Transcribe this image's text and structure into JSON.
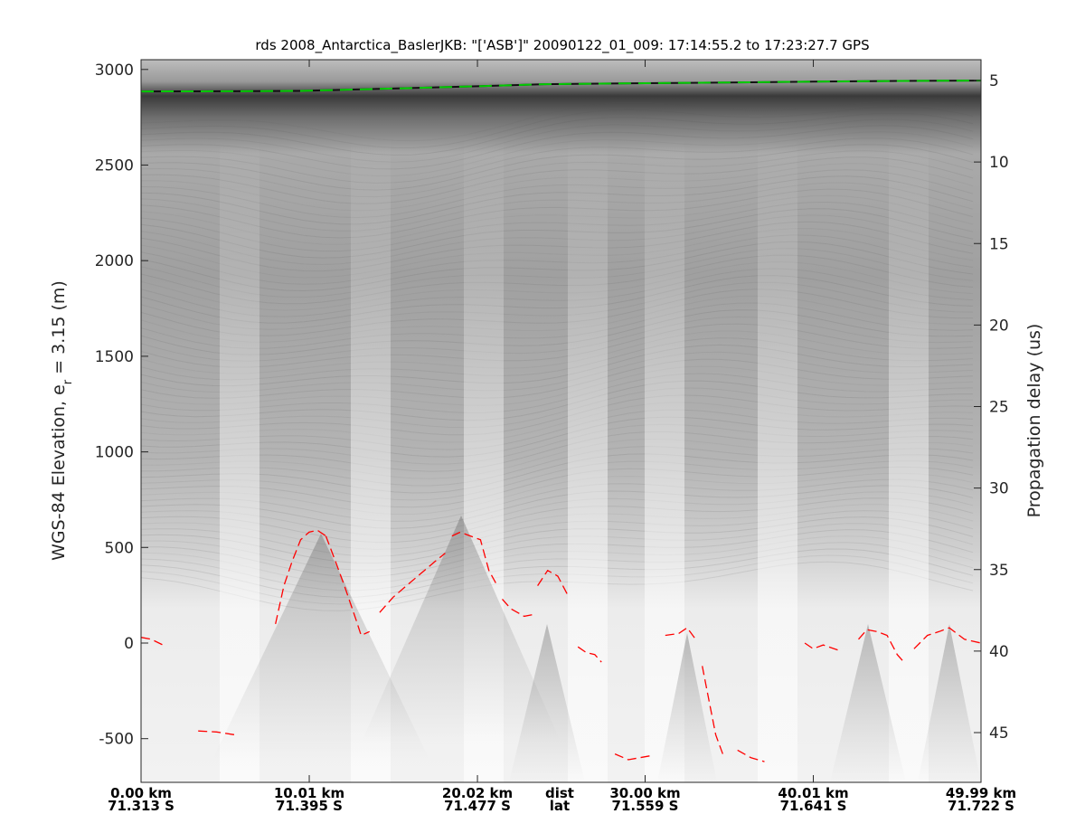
{
  "chart_data": {
    "type": "heatmap",
    "title": "rds 2008_Antarctica_BaslerJKB: \"['ASB']\"  20090122_01_009: 17:14:55.2 to 17:23:27.7 GPS",
    "ylabel": "WGS-84 Elevation, e",
    "ylabel_sub": "r",
    "ylabel_suffix": " = 3.15 (m)",
    "y2label": "Propagation delay (us)",
    "colormap": "gray-inverted",
    "ylim": [
      -720,
      3050
    ],
    "y_ticks": [
      3000,
      2500,
      2000,
      1500,
      1000,
      500,
      0,
      -500
    ],
    "y2lim": [
      2.6,
      48.7
    ],
    "y2_ticks": [
      5,
      10,
      15,
      20,
      25,
      30,
      35,
      40,
      45
    ],
    "xlim": [
      0,
      49.99
    ],
    "x_ticks": [
      {
        "dist": "0.00 km",
        "lat": "71.313 S",
        "km": 0
      },
      {
        "dist": "10.01 km",
        "lat": "71.395 S",
        "km": 10.01
      },
      {
        "dist": "20.02 km",
        "lat": "71.477 S",
        "km": 20.02
      },
      {
        "dist": "30.00 km",
        "lat": "71.559 S",
        "km": 30.0
      },
      {
        "dist": "40.01 km",
        "lat": "71.641 S",
        "km": 40.01
      },
      {
        "dist": "49.99 km",
        "lat": "71.722 S",
        "km": 49.99
      }
    ],
    "x_row_labels": {
      "dist": "dist",
      "lat": "lat"
    },
    "series": [
      {
        "role": "surface",
        "color": "#00cc00",
        "style": "dashed",
        "x": [
          0,
          5,
          9.4,
          15,
          20,
          24,
          30,
          35,
          40,
          45,
          49.99
        ],
        "y": [
          2885,
          2886,
          2888,
          2900,
          2912,
          2923,
          2928,
          2932,
          2936,
          2940,
          2942
        ]
      },
      {
        "role": "bed",
        "color": "#ff0000",
        "style": "dashed",
        "segments": [
          {
            "x": [
              0,
              0.6,
              1.3
            ],
            "y": [
              30,
              20,
              -10
            ]
          },
          {
            "x": [
              3.4,
              4.5,
              5.6
            ],
            "y": [
              -460,
              -465,
              -480
            ]
          },
          {
            "x": [
              8.0,
              8.5,
              9.0,
              9.5,
              10.0,
              10.5,
              11.0
            ],
            "y": [
              100,
              300,
              430,
              540,
              580,
              590,
              560
            ]
          },
          {
            "x": [
              11.0,
              11.6,
              12.1,
              12.8,
              13.1,
              13.6
            ],
            "y": [
              560,
              420,
              300,
              120,
              40,
              60
            ]
          },
          {
            "x": [
              14.2,
              15.0,
              15.8,
              16.6,
              17.4,
              18.1
            ],
            "y": [
              160,
              240,
              300,
              360,
              420,
              470
            ]
          },
          {
            "x": [
              18.5,
              19.0,
              19.6,
              20.2,
              20.7,
              21.2
            ],
            "y": [
              560,
              580,
              560,
              540,
              380,
              300
            ]
          },
          {
            "x": [
              21.5,
              22.0,
              22.8,
              23.4
            ],
            "y": [
              230,
              180,
              140,
              150
            ]
          },
          {
            "x": [
              23.6,
              24.2,
              24.8,
              25.4
            ],
            "y": [
              300,
              380,
              350,
              250
            ]
          },
          {
            "x": [
              26.0,
              26.5,
              27.0,
              27.4
            ],
            "y": [
              -20,
              -50,
              -60,
              -100
            ]
          },
          {
            "x": [
              28.2,
              29.0,
              30.3
            ],
            "y": [
              -580,
              -610,
              -590
            ]
          },
          {
            "x": [
              31.2,
              32.0,
              32.5,
              33.0
            ],
            "y": [
              40,
              50,
              80,
              20
            ]
          },
          {
            "x": [
              33.4,
              33.8,
              34.2,
              34.7
            ],
            "y": [
              -120,
              -300,
              -480,
              -600
            ]
          },
          {
            "x": [
              35.5,
              36.3,
              37.1
            ],
            "y": [
              -560,
              -600,
              -620
            ]
          },
          {
            "x": [
              39.5,
              40.0,
              40.6,
              41.6
            ],
            "y": [
              0,
              -30,
              -10,
              -40
            ]
          },
          {
            "x": [
              42.7,
              43.2,
              43.8,
              44.4,
              45.0,
              45.4
            ],
            "y": [
              20,
              70,
              60,
              40,
              -60,
              -100
            ]
          },
          {
            "x": [
              46.0,
              46.8,
              47.5,
              48.1,
              49.0,
              49.99
            ],
            "y": [
              -30,
              40,
              60,
              80,
              20,
              0
            ]
          }
        ]
      }
    ]
  }
}
